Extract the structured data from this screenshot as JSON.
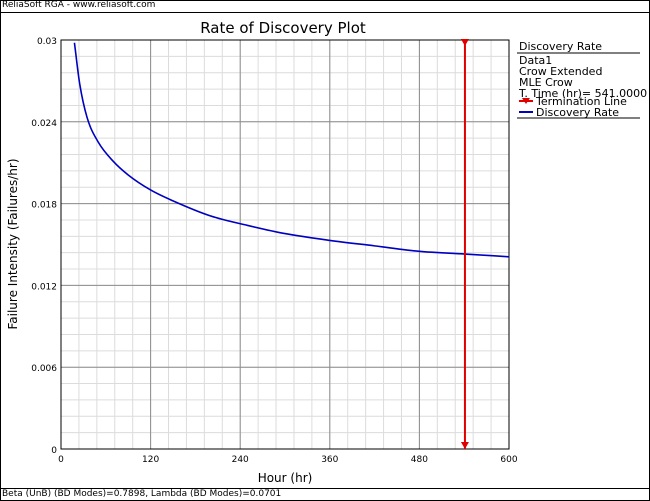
{
  "header": {
    "text": "ReliaSoft RGA - www.reliasoft.com"
  },
  "footer": {
    "text": "Beta (UnB) (BD Modes)=0.7898, Lambda (BD Modes)=0.0701"
  },
  "legend": {
    "title": "Discovery Rate",
    "lines": [
      "Data1",
      "Crow Extended",
      "MLE Crow",
      "T. Time (hr)= 541.0000"
    ],
    "entries": [
      {
        "label": "Termination Line",
        "color": "#e00000",
        "marker": "triangle"
      },
      {
        "label": "Discovery Rate",
        "color": "#0000c0",
        "marker": "none"
      }
    ]
  },
  "chart_data": {
    "type": "line",
    "title": "Rate of Discovery Plot",
    "xlabel": "Hour (hr)",
    "ylabel": "Failure Intensity (Failures/hr)",
    "xlim": [
      0,
      600
    ],
    "ylim": [
      0,
      0.03
    ],
    "xticks": [
      "0",
      "120",
      "240",
      "360",
      "480",
      "600"
    ],
    "yticks": [
      "0",
      "0.006",
      "0.012",
      "0.018",
      "0.024",
      "0.03"
    ],
    "grid": true,
    "legend_position": "right",
    "series": [
      {
        "name": "Discovery Rate",
        "color": "#0000c0",
        "x": [
          18,
          25,
          35,
          50,
          70,
          90,
          120,
          150,
          200,
          250,
          300,
          360,
          420,
          480,
          541,
          600
        ],
        "y": [
          0.0298,
          0.0268,
          0.0243,
          0.0225,
          0.0211,
          0.0201,
          0.019,
          0.0182,
          0.0171,
          0.0164,
          0.0158,
          0.0153,
          0.0149,
          0.0145,
          0.0143,
          0.0141
        ]
      }
    ],
    "vertical_lines": [
      {
        "name": "Termination Line",
        "x": 541,
        "color": "#e00000"
      }
    ]
  }
}
